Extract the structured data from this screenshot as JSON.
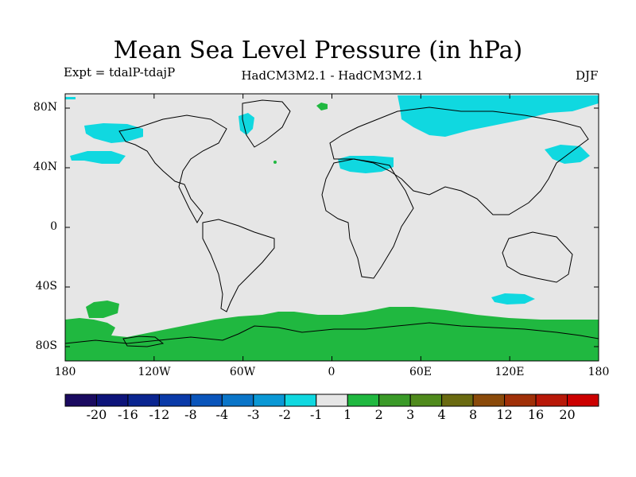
{
  "title": "Mean Sea Level Pressure (in hPa)",
  "experiment": "Expt = tdalP-tdajP",
  "model": "HadCM3M2.1 - HadCM3M2.1",
  "season": "DJF",
  "lat_ticks": [
    "80N",
    "40N",
    "0",
    "40S",
    "80S"
  ],
  "lon_ticks": [
    "180",
    "120W",
    "60W",
    "0",
    "60E",
    "120E",
    "180"
  ],
  "colorbar": {
    "labels": [
      "-20",
      "-16",
      "-12",
      "-8",
      "-4",
      "-3",
      "-2",
      "-1",
      "1",
      "2",
      "3",
      "4",
      "8",
      "12",
      "16",
      "20"
    ],
    "colors": [
      "#1a0a60",
      "#0d147a",
      "#0a2590",
      "#0a3aa8",
      "#0a55bb",
      "#0a75c8",
      "#0a98d5",
      "#10d8e0",
      "#e6e6e6",
      "#20b840",
      "#3a9a28",
      "#4f8a1c",
      "#6a6a10",
      "#8a4a0a",
      "#a03008",
      "#b81808",
      "#cc0000"
    ]
  },
  "colors": {
    "background": "#e6e6e6",
    "negative": "#10d8e0",
    "positive": "#20b840"
  }
}
